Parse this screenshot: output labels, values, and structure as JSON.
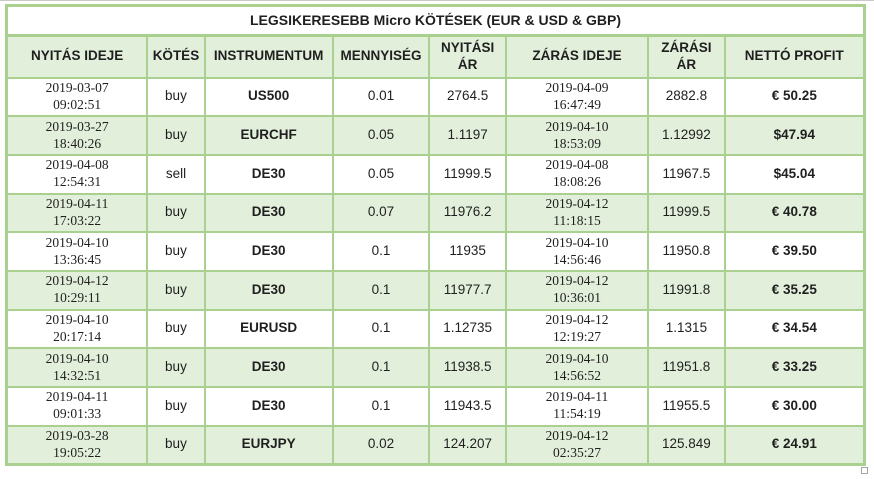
{
  "colors": {
    "border_green": "#a9d08e",
    "row_fill_green": "#e2efda",
    "text": "#1f1f1f"
  },
  "table": {
    "title": "LEGSIKERESEBB Micro KÖTÉSEK (EUR & USD & GBP)",
    "columns": [
      {
        "key": "open_time",
        "label": "NYITÁS IDEJE"
      },
      {
        "key": "side",
        "label": "KÖTÉS"
      },
      {
        "key": "instrument",
        "label": "INSTRUMENTUM"
      },
      {
        "key": "quantity",
        "label": "MENNYISÉG"
      },
      {
        "key": "open_price",
        "label": "NYITÁSI ÁR"
      },
      {
        "key": "close_time",
        "label": "ZÁRÁS IDEJE"
      },
      {
        "key": "close_price",
        "label": "ZÁRÁSI ÁR"
      },
      {
        "key": "net_profit",
        "label": "NETTÓ PROFIT"
      }
    ],
    "rows": [
      {
        "open_time": "2019-03-07\n09:02:51",
        "side": "buy",
        "instrument": "US500",
        "quantity": "0.01",
        "open_price": "2764.5",
        "close_time": "2019-04-09\n16:47:49",
        "close_price": "2882.8",
        "net_profit": "€ 50.25"
      },
      {
        "open_time": "2019-03-27\n18:40:26",
        "side": "buy",
        "instrument": "EURCHF",
        "quantity": "0.05",
        "open_price": "1.1197",
        "close_time": "2019-04-10\n18:53:09",
        "close_price": "1.12992",
        "net_profit": "$47.94"
      },
      {
        "open_time": "2019-04-08\n12:54:31",
        "side": "sell",
        "instrument": "DE30",
        "quantity": "0.05",
        "open_price": "11999.5",
        "close_time": "2019-04-08\n18:08:26",
        "close_price": "11967.5",
        "net_profit": "$45.04"
      },
      {
        "open_time": "2019-04-11\n17:03:22",
        "side": "buy",
        "instrument": "DE30",
        "quantity": "0.07",
        "open_price": "11976.2",
        "close_time": "2019-04-12\n11:18:15",
        "close_price": "11999.5",
        "net_profit": "€ 40.78"
      },
      {
        "open_time": "2019-04-10\n13:36:45",
        "side": "buy",
        "instrument": "DE30",
        "quantity": "0.1",
        "open_price": "11935",
        "close_time": "2019-04-10\n14:56:46",
        "close_price": "11950.8",
        "net_profit": "€ 39.50"
      },
      {
        "open_time": "2019-04-12\n10:29:11",
        "side": "buy",
        "instrument": "DE30",
        "quantity": "0.1",
        "open_price": "11977.7",
        "close_time": "2019-04-12\n10:36:01",
        "close_price": "11991.8",
        "net_profit": "€ 35.25"
      },
      {
        "open_time": "2019-04-10\n20:17:14",
        "side": "buy",
        "instrument": "EURUSD",
        "quantity": "0.1",
        "open_price": "1.12735",
        "close_time": "2019-04-12\n12:19:27",
        "close_price": "1.1315",
        "net_profit": "€ 34.54"
      },
      {
        "open_time": "2019-04-10\n14:32:51",
        "side": "buy",
        "instrument": "DE30",
        "quantity": "0.1",
        "open_price": "11938.5",
        "close_time": "2019-04-10\n14:56:52",
        "close_price": "11951.8",
        "net_profit": "€ 33.25"
      },
      {
        "open_time": "2019-04-11\n09:01:33",
        "side": "buy",
        "instrument": "DE30",
        "quantity": "0.1",
        "open_price": "11943.5",
        "close_time": "2019-04-11\n11:54:19",
        "close_price": "11955.5",
        "net_profit": "€ 30.00"
      },
      {
        "open_time": "2019-03-28\n19:05:22",
        "side": "buy",
        "instrument": "EURJPY",
        "quantity": "0.02",
        "open_price": "124.207",
        "close_time": "2019-04-12\n02:35:27",
        "close_price": "125.849",
        "net_profit": "€ 24.91"
      }
    ]
  }
}
